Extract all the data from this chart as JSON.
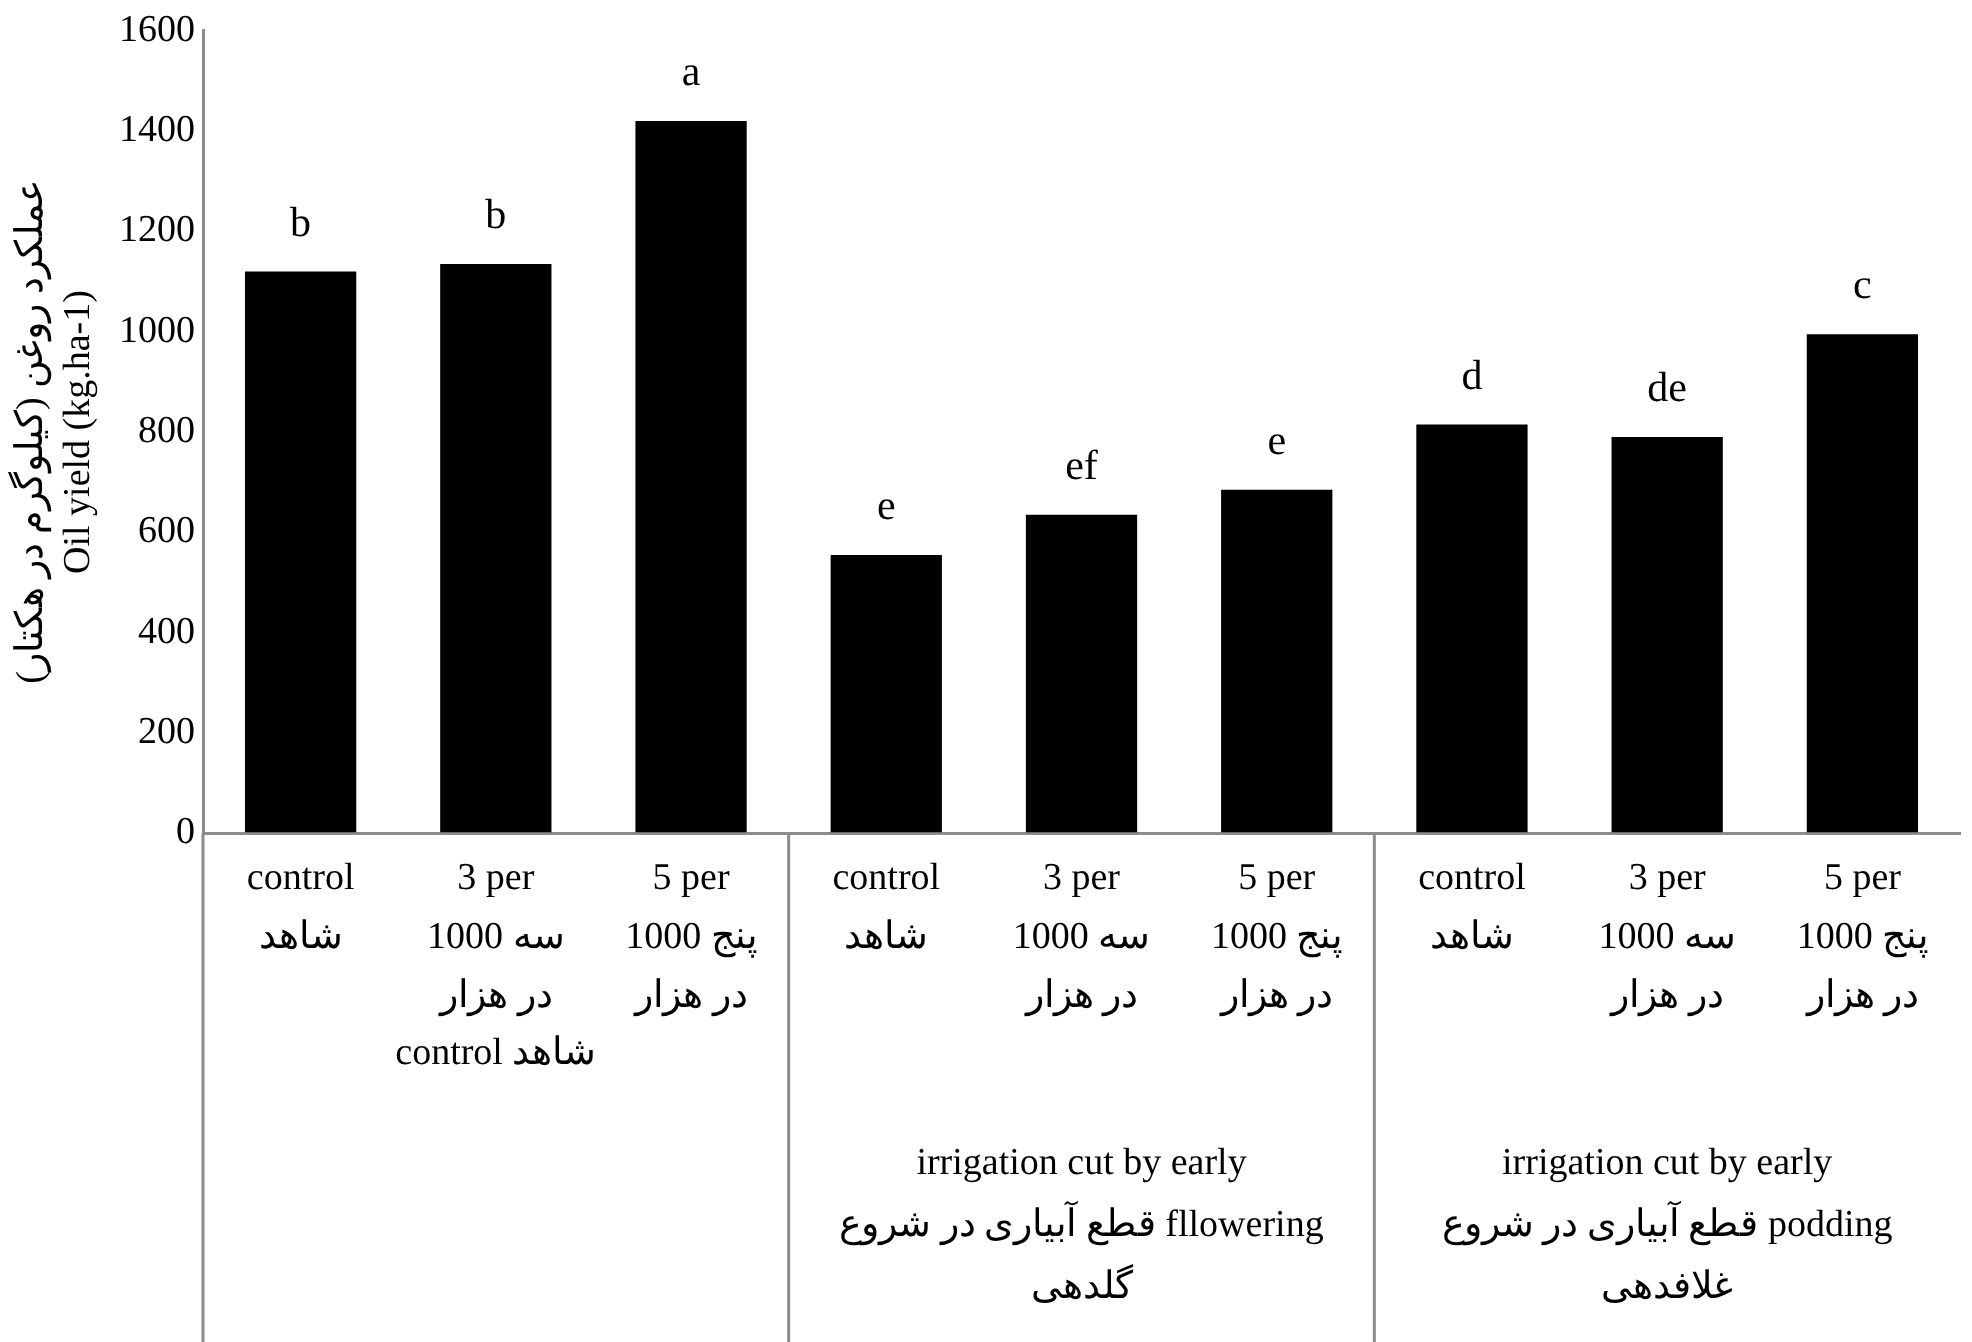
{
  "chart_data": {
    "type": "bar",
    "ylabel": "عملکرد روغن (کیلوگرم در هکتار)\nOil yield (kg.ha-1)",
    "categories": [
      "control\nشاهد",
      "3 per\n1000 سه\nدر هزار",
      "5 per\nپنج 1000\nدر هزار",
      "control\nشاهد",
      "3 per\n1000 سه\nدر هزار",
      "5 per\nپنج 1000\nدر هزار",
      "control\nشاهد",
      "3 per\n1000 سه\nدر هزار",
      "5 per\nپنج 1000\nدر هزار"
    ],
    "values": [
      1120,
      1135,
      1420,
      555,
      635,
      685,
      815,
      790,
      995
    ],
    "value_labels": [
      "b",
      "b",
      "a",
      "e",
      "ef",
      "e",
      "d",
      "de",
      "c"
    ],
    "color": "#000000",
    "ylim": [
      0,
      1600
    ],
    "yticks": [
      0,
      200,
      400,
      600,
      800,
      1000,
      1200,
      1400,
      1600
    ],
    "annotations": [
      "control شاهد",
      "irrigation cut by early\nقطع آبیاری در شروع fllowering\nگلدهی",
      "irrigation cut by early\nقطع آبیاری در شروع podding\nغلافدهی"
    ],
    "grid": false,
    "legend": false
  }
}
